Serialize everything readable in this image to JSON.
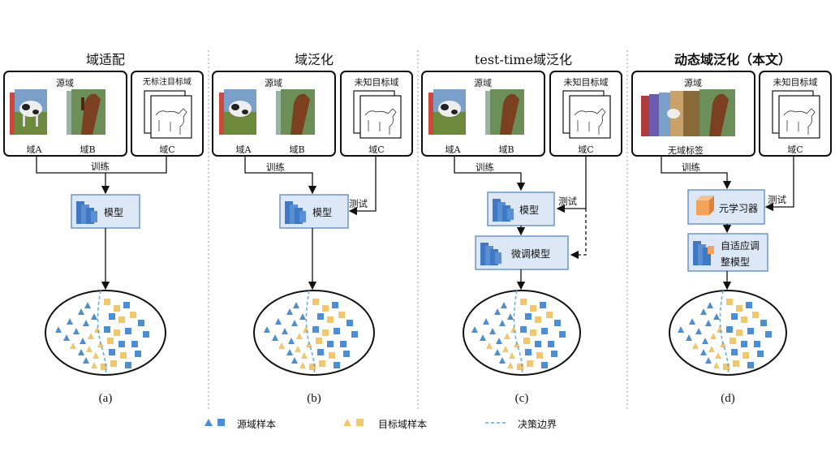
{
  "panels": [
    {
      "id": "a",
      "title": "域适配",
      "source_label": "源域",
      "domain_a": "域A",
      "domain_b": "域B",
      "target_label": "无标注目标域",
      "domain_c": "域C",
      "train_label": "训练",
      "model_label": "模型",
      "caption": "(a)"
    },
    {
      "id": "b",
      "title": "域泛化",
      "source_label": "源域",
      "domain_a": "域A",
      "domain_b": "域B",
      "target_label": "未知目标域",
      "domain_c": "域C",
      "train_label": "训练",
      "test_label": "测试",
      "model_label": "模型",
      "caption": "(b)"
    },
    {
      "id": "c",
      "title": "test-time域泛化",
      "source_label": "源域",
      "domain_a": "域A",
      "domain_b": "域B",
      "target_label": "未知目标域",
      "domain_c": "域C",
      "train_label": "训练",
      "test_label": "测试",
      "model_label": "模型",
      "finetune_label": "微调模型",
      "caption": "(c)"
    },
    {
      "id": "d",
      "title": "动态域泛化（本文）",
      "source_label": "源域",
      "no_domain_label": "无域标签",
      "target_label": "未知目标域",
      "domain_c": "域C",
      "train_label": "训练",
      "test_label": "测试",
      "meta_learner_label": "元学习器",
      "adaptive_model_label_1": "自适应调",
      "adaptive_model_label_2": "整模型",
      "caption": "(d)"
    }
  ],
  "legend": {
    "source_samples": "源域样本",
    "target_samples": "目标域样本",
    "decision_boundary": "决策边界"
  },
  "colors": {
    "source_blue": "#4a8fd6",
    "target_yellow": "#f2c66b",
    "model_fill": "#dde8f6",
    "meta_orange": "#f5a25a",
    "boundary": "#5aa9e0"
  }
}
